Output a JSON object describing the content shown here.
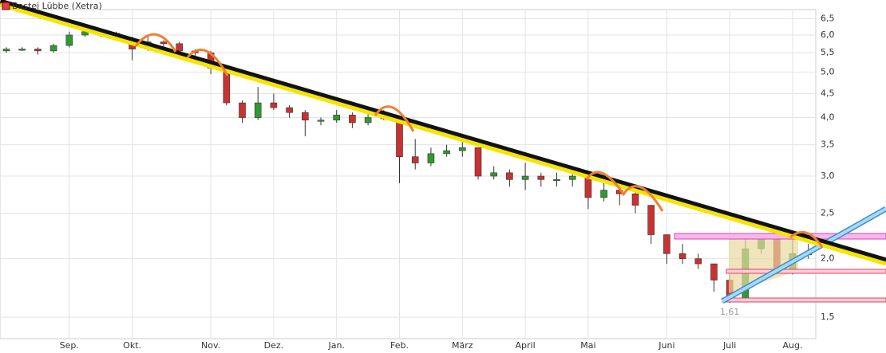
{
  "chart_data": {
    "type": "candlestick",
    "title": "Bastei Lübbe (Xetra)",
    "categories": [
      null,
      null,
      null,
      null,
      "Sep.",
      null,
      null,
      null,
      "Okt.",
      null,
      null,
      null,
      null,
      "Nov.",
      null,
      null,
      null,
      "Dez.",
      null,
      null,
      null,
      "Jan.",
      null,
      null,
      null,
      "Feb.",
      null,
      null,
      null,
      "März",
      null,
      null,
      null,
      "April",
      null,
      null,
      null,
      "Mai",
      null,
      null,
      null,
      null,
      "Juni",
      null,
      null,
      null,
      "Juli",
      null,
      null,
      null,
      "Aug.",
      null
    ],
    "open": [
      5.55,
      5.6,
      5.6,
      5.55,
      5.7,
      6.0,
      6.1,
      6.05,
      5.9,
      5.6,
      5.8,
      5.75,
      5.55,
      5.5,
      5.1,
      4.3,
      4.0,
      4.3,
      4.2,
      4.1,
      3.95,
      3.95,
      4.05,
      3.9,
      4.0,
      4.0,
      3.3,
      3.2,
      3.35,
      3.4,
      3.45,
      3.0,
      3.05,
      2.95,
      3.0,
      2.95,
      2.95,
      3.0,
      2.7,
      2.8,
      2.75,
      2.6,
      2.25,
      2.05,
      2.0,
      1.95,
      1.8,
      1.65,
      2.1,
      2.2,
      1.9,
      2.05
    ],
    "high": [
      5.65,
      5.65,
      5.65,
      5.75,
      6.1,
      6.13,
      6.13,
      6.1,
      5.95,
      5.95,
      5.85,
      5.8,
      5.6,
      5.55,
      5.15,
      4.35,
      4.65,
      4.5,
      4.25,
      4.15,
      4.0,
      4.15,
      4.1,
      4.1,
      4.15,
      4.0,
      3.6,
      3.45,
      3.5,
      3.55,
      3.45,
      3.15,
      3.1,
      3.2,
      3.05,
      3.05,
      3.1,
      3.05,
      2.9,
      2.85,
      2.8,
      2.6,
      2.25,
      2.15,
      2.05,
      1.95,
      1.85,
      2.2,
      2.25,
      2.2,
      2.2,
      2.15
    ],
    "low": [
      5.5,
      5.55,
      5.45,
      5.5,
      5.65,
      5.95,
      5.95,
      5.85,
      5.3,
      5.55,
      5.65,
      5.45,
      5.4,
      4.95,
      4.25,
      3.9,
      3.95,
      4.15,
      4.0,
      3.65,
      3.85,
      3.9,
      3.8,
      3.85,
      3.95,
      2.9,
      3.1,
      3.15,
      3.3,
      3.3,
      2.95,
      2.95,
      2.85,
      2.8,
      2.85,
      2.85,
      2.85,
      2.55,
      2.65,
      2.6,
      2.5,
      2.15,
      1.95,
      1.95,
      1.9,
      1.7,
      1.61,
      1.65,
      2.05,
      1.85,
      1.85,
      2.0
    ],
    "close": [
      5.6,
      5.6,
      5.55,
      5.7,
      6.0,
      6.1,
      6.05,
      5.9,
      5.6,
      5.8,
      5.75,
      5.55,
      5.5,
      5.1,
      4.3,
      4.0,
      4.3,
      4.2,
      4.1,
      3.95,
      3.95,
      4.05,
      3.9,
      4.0,
      4.0,
      3.3,
      3.2,
      3.35,
      3.4,
      3.45,
      3.0,
      3.05,
      2.95,
      3.0,
      2.95,
      2.95,
      3.0,
      2.7,
      2.8,
      2.75,
      2.6,
      2.25,
      2.05,
      2.0,
      1.95,
      1.8,
      1.65,
      2.1,
      2.2,
      1.9,
      2.05,
      2.05
    ],
    "up_color": "#2f9a2f",
    "down_color": "#c83232",
    "ylim": [
      1.35,
      6.8
    ],
    "log_scale": true,
    "grid": true,
    "yticks": [
      {
        "value": 1.5,
        "label": "1,5"
      },
      {
        "value": 2.0,
        "label": "2,0"
      },
      {
        "value": 2.5,
        "label": "2,5"
      },
      {
        "value": 3.0,
        "label": "3,0"
      },
      {
        "value": 3.5,
        "label": "3,5"
      },
      {
        "value": 4.0,
        "label": "4,0"
      },
      {
        "value": 4.5,
        "label": "4,5"
      },
      {
        "value": 5.0,
        "label": "5,0"
      },
      {
        "value": 5.5,
        "label": "5,5"
      },
      {
        "value": 6.0,
        "label": "6,0"
      },
      {
        "value": 6.5,
        "label": "6,5"
      }
    ],
    "annotations": [
      {
        "value": 1.61,
        "label": "1,61"
      }
    ]
  }
}
